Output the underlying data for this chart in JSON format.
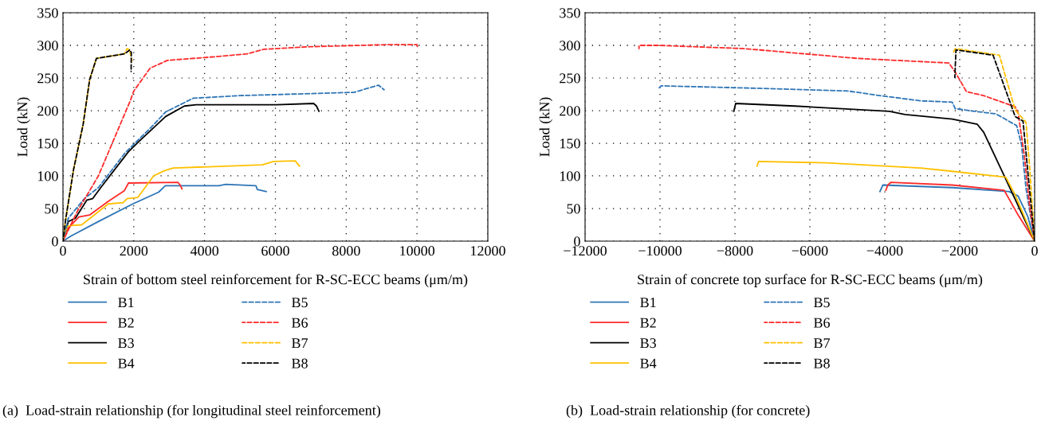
{
  "chart_data": [
    {
      "type": "line",
      "xlabel": "Strain of bottom steel reinforcement for R-SC-ECC beams (μm/m)",
      "ylabel": "Load (kN)",
      "xlim": [
        0,
        12000
      ],
      "ylim": [
        0,
        350
      ],
      "xticks": [
        0,
        2000,
        4000,
        6000,
        8000,
        10000,
        12000
      ],
      "yticks": [
        0,
        50,
        100,
        150,
        200,
        250,
        300,
        350
      ],
      "grid": true,
      "legend": "bottom",
      "marker": "none",
      "annotations": [
        "(a)  Load-strain relationship (for longitudinal steel reinforcement)"
      ],
      "series": [
        {
          "name": "B1",
          "color": "#2e75b6",
          "line_style": "solid",
          "x": [
            0,
            230,
            1000,
            1970,
            2700,
            2890,
            4400,
            4600,
            5450,
            5490,
            5740
          ],
          "values": [
            0,
            8,
            30,
            57,
            75,
            85,
            85,
            87,
            85,
            79,
            76
          ]
        },
        {
          "name": "B2",
          "color": "#ff2a2a",
          "line_style": "solid",
          "x": [
            0,
            150,
            450,
            750,
            1280,
            1730,
            1850,
            3250,
            3320,
            3360
          ],
          "values": [
            0,
            20,
            37,
            40,
            61,
            77,
            89,
            90,
            85,
            80
          ]
        },
        {
          "name": "B3",
          "color": "#000000",
          "line_style": "solid",
          "x": [
            0,
            150,
            350,
            675,
            835,
            1080,
            1850,
            2130,
            2900,
            3430,
            3760,
            6030,
            7080,
            7160,
            7230
          ],
          "values": [
            0,
            30,
            35,
            63,
            65,
            83,
            137,
            152,
            191,
            207,
            209,
            209,
            211,
            207,
            199
          ]
        },
        {
          "name": "B4",
          "color": "#ffc000",
          "line_style": "solid",
          "x": [
            0,
            110,
            230,
            530,
            1280,
            1700,
            1810,
            2115,
            2560,
            2870,
            3110,
            5630,
            5950,
            6560,
            6680
          ],
          "values": [
            0,
            22,
            24,
            25,
            57,
            59,
            65,
            67,
            100,
            108,
            112,
            117,
            122,
            123,
            115
          ]
        },
        {
          "name": "B5",
          "color": "#2e75b6",
          "line_style": "dashed",
          "x": [
            0,
            150,
            600,
            1000,
            1750,
            2500,
            2900,
            3680,
            5000,
            8220,
            8910,
            9070
          ],
          "values": [
            0,
            35,
            65,
            82,
            135,
            175,
            198,
            219,
            223,
            228,
            239,
            232
          ]
        },
        {
          "name": "B6",
          "color": "#ff2a2a",
          "line_style": "dashed",
          "x": [
            0,
            400,
            1000,
            1900,
            2000,
            2460,
            2950,
            4400,
            5200,
            5680,
            7000,
            9100,
            10000,
            10020
          ],
          "values": [
            0,
            45,
            100,
            215,
            230,
            265,
            277,
            283,
            287,
            294,
            298,
            301,
            301,
            296
          ]
        },
        {
          "name": "B7",
          "color": "#ffc000",
          "line_style": "dashed",
          "x": [
            0,
            75,
            300,
            570,
            755,
            945,
            1735,
            1810,
            1880,
            1950
          ],
          "values": [
            0,
            33,
            110,
            179,
            248,
            280,
            287,
            295,
            293,
            276
          ]
        },
        {
          "name": "B8",
          "color": "#000000",
          "line_style": "dashed",
          "x": [
            0,
            75,
            300,
            570,
            755,
            945,
            1735,
            1890,
            1930,
            1925
          ],
          "values": [
            0,
            33,
            110,
            179,
            248,
            280,
            287,
            293,
            289,
            260
          ]
        }
      ]
    },
    {
      "type": "line",
      "xlabel": "Strain of concrete top surface for R-SC-ECC beams (μm/m)",
      "ylabel": "Load (kN)",
      "xlim": [
        -12000,
        0
      ],
      "ylim": [
        0,
        350
      ],
      "xticks": [
        -12000,
        -10000,
        -8000,
        -6000,
        -4000,
        -2000,
        0
      ],
      "yticks": [
        0,
        50,
        100,
        150,
        200,
        250,
        300,
        350
      ],
      "grid": true,
      "legend": "bottom",
      "marker": "none",
      "annotations": [
        "(b)  Load-strain relationship (for concrete)"
      ],
      "series": [
        {
          "name": "B1",
          "color": "#2e75b6",
          "line_style": "solid",
          "x": [
            -4130,
            -4050,
            -2200,
            -690,
            -440,
            -185,
            0
          ],
          "values": [
            76,
            86,
            82,
            76,
            69,
            38,
            0
          ]
        },
        {
          "name": "B2",
          "color": "#ff2a2a",
          "line_style": "solid",
          "x": [
            -3970,
            -3920,
            -3840,
            -2200,
            -815,
            -440,
            0
          ],
          "values": [
            78,
            86,
            90,
            86,
            78,
            40,
            0
          ]
        },
        {
          "name": "B3",
          "color": "#000000",
          "line_style": "solid",
          "x": [
            -8030,
            -7980,
            -6400,
            -3880,
            -3460,
            -2200,
            -1530,
            -1360,
            -770,
            0
          ],
          "values": [
            199,
            211,
            207,
            199,
            194,
            187,
            179,
            167,
            95,
            0
          ]
        },
        {
          "name": "B4",
          "color": "#ffc000",
          "line_style": "solid",
          "x": [
            -7410,
            -7370,
            -5560,
            -3040,
            -2200,
            -770,
            -520,
            0
          ],
          "values": [
            115,
            122,
            120,
            112,
            107,
            98,
            71,
            0
          ]
        },
        {
          "name": "B5",
          "color": "#2e75b6",
          "line_style": "dashed",
          "x": [
            -10020,
            -9970,
            -7240,
            -4970,
            -4130,
            -3040,
            -2200,
            -2120,
            -1610,
            -1030,
            -480,
            -350,
            -230,
            0
          ],
          "values": [
            235,
            238,
            234,
            230,
            223,
            215,
            213,
            203,
            199,
            195,
            177,
            148,
            81,
            0
          ]
        },
        {
          "name": "B6",
          "color": "#ff2a2a",
          "line_style": "dashed",
          "x": [
            -10560,
            -10560,
            -10020,
            -7750,
            -4720,
            -2290,
            -2120,
            -1820,
            -1360,
            -520,
            -440,
            -270,
            -140,
            0
          ],
          "values": [
            295,
            300,
            300,
            295,
            280,
            273,
            259,
            229,
            223,
            206,
            196,
            129,
            57,
            0
          ]
        },
        {
          "name": "B7",
          "color": "#ffc000",
          "line_style": "dashed",
          "x": [
            -2160,
            -2120,
            -940,
            -520,
            -230,
            -140,
            0
          ],
          "values": [
            290,
            295,
            285,
            201,
            182,
            119,
            0
          ]
        },
        {
          "name": "B8",
          "color": "#000000",
          "line_style": "dashed",
          "x": [
            -2130,
            -2100,
            -1110,
            -520,
            -310,
            -140,
            0
          ],
          "values": [
            251,
            293,
            285,
            191,
            184,
            81,
            0
          ]
        }
      ]
    }
  ]
}
